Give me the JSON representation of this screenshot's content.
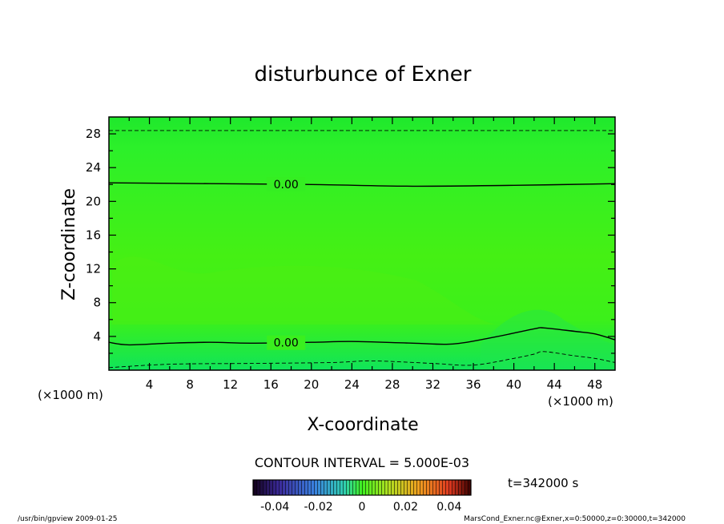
{
  "chart_data": {
    "type": "contour",
    "title": "disturbunce of Exner",
    "xlabel": "X-coordinate",
    "ylabel": "Z-coordinate",
    "x_unit": "(×1000 m)",
    "x_unit_right": "(×1000 m)",
    "y_unit": "(×1000 m)",
    "xlim": [
      0,
      50
    ],
    "ylim": [
      0,
      30
    ],
    "xticks": [
      4,
      8,
      12,
      16,
      20,
      24,
      28,
      32,
      36,
      40,
      44,
      48
    ],
    "yticks": [
      4,
      8,
      12,
      16,
      20,
      24,
      28
    ],
    "contour_interval_label": "CONTOUR INTERVAL = 5.000E-03",
    "time_label": "t=342000 s",
    "colorbar": {
      "range": [
        -0.05,
        0.05
      ],
      "tick_labels": [
        "-0.04",
        "-0.02",
        "0",
        "0.02",
        "0.04"
      ],
      "tick_values": [
        -0.04,
        -0.02,
        0,
        0.02,
        0.04
      ]
    },
    "contours": [
      {
        "level": 0.0,
        "label": "0.00",
        "style": "solid",
        "points": [
          [
            0,
            22.2
          ],
          [
            10,
            22.1
          ],
          [
            20,
            22.0
          ],
          [
            30,
            21.8
          ],
          [
            40,
            21.9
          ],
          [
            50,
            22.1
          ]
        ]
      },
      {
        "level": 0.0,
        "label": "0.00",
        "style": "solid",
        "points": [
          [
            0,
            3.3
          ],
          [
            2,
            3.0
          ],
          [
            6,
            3.2
          ],
          [
            10,
            3.3
          ],
          [
            14,
            3.2
          ],
          [
            20,
            3.3
          ],
          [
            24,
            3.4
          ],
          [
            30,
            3.2
          ],
          [
            34,
            3.1
          ],
          [
            38,
            3.9
          ],
          [
            42,
            4.9
          ],
          [
            43,
            5.0
          ],
          [
            46,
            4.6
          ],
          [
            48,
            4.3
          ],
          [
            50,
            3.6
          ]
        ]
      },
      {
        "level": 0.005,
        "label": "",
        "style": "dashed",
        "points": [
          [
            0,
            28.4
          ],
          [
            50,
            28.4
          ]
        ]
      },
      {
        "level": -0.005,
        "label": "",
        "style": "dashed",
        "points": [
          [
            0,
            0.3
          ],
          [
            6,
            0.7
          ],
          [
            14,
            0.8
          ],
          [
            22,
            0.9
          ],
          [
            26,
            1.1
          ],
          [
            32,
            0.8
          ],
          [
            36,
            0.6
          ],
          [
            40,
            1.4
          ],
          [
            42,
            1.9
          ],
          [
            43,
            2.2
          ],
          [
            46,
            1.7
          ],
          [
            48,
            1.4
          ],
          [
            50,
            0.9
          ]
        ]
      }
    ]
  },
  "footer": {
    "left": "/usr/bin/gpview   2009-01-25",
    "right": "MarsCond_Exner.nc@Exner,x=0:50000,z=0:30000,t=342000"
  }
}
